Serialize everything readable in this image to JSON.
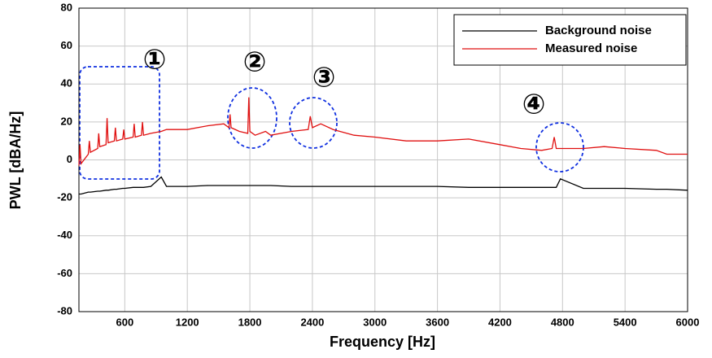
{
  "chart_data": {
    "type": "line",
    "xlabel": "Frequency [Hz]",
    "ylabel": "PWL [dBA/Hz]",
    "x": [
      160,
      170,
      180,
      250,
      260,
      270,
      340,
      350,
      360,
      420,
      430,
      440,
      500,
      510,
      520,
      580,
      590,
      600,
      680,
      690,
      700,
      760,
      770,
      780,
      850,
      950,
      1000,
      1200,
      1400,
      1550,
      1600,
      1610,
      1620,
      1700,
      1780,
      1790,
      1800,
      1850,
      1950,
      2000,
      2200,
      2360,
      2380,
      2400,
      2480,
      2600,
      2800,
      3000,
      3300,
      3600,
      3900,
      4200,
      4400,
      4600,
      4700,
      4720,
      4740,
      4780,
      5000,
      5200,
      5400,
      5700,
      5800,
      6000
    ],
    "series": [
      {
        "name": "Background noise",
        "color": "#000000",
        "values": [
          -18,
          -18,
          -18,
          -17,
          -17,
          -17,
          -16.5,
          -16.5,
          -16.5,
          -16,
          -16,
          -16,
          -15.5,
          -15.5,
          -15.5,
          -15,
          -15,
          -15,
          -14.5,
          -14.5,
          -14.5,
          -14.5,
          -14.5,
          -14.5,
          -14,
          -9,
          -14,
          -14,
          -13.5,
          -13.5,
          -13.5,
          -13.5,
          -13.5,
          -13.5,
          -13.5,
          -13.5,
          -13.5,
          -13.5,
          -13.5,
          -13.5,
          -14,
          -14,
          -14,
          -14,
          -14,
          -14,
          -14,
          -14,
          -14,
          -14,
          -14.5,
          -14.5,
          -14.5,
          -14.5,
          -14.5,
          -14.5,
          -14.5,
          -10,
          -15,
          -15,
          -15,
          -15.5,
          -15.5,
          -16
        ]
      },
      {
        "name": "Measured noise",
        "color": "#e01010",
        "values": [
          -3,
          8,
          -2,
          3,
          10,
          4,
          6,
          14,
          7,
          8,
          22,
          9,
          10,
          17,
          10,
          11,
          16,
          11,
          12,
          19,
          12,
          13,
          20,
          13,
          14,
          15,
          16,
          16,
          18,
          19,
          17,
          24,
          17,
          15,
          14,
          33,
          15,
          13,
          15,
          13,
          15,
          16,
          23,
          17,
          19,
          16,
          13,
          12,
          10,
          10,
          11,
          8,
          6,
          5,
          6,
          12,
          6,
          6,
          6,
          7,
          6,
          5,
          3,
          3
        ]
      }
    ],
    "xlim": [
      160,
      6000
    ],
    "xticks": [
      600,
      1200,
      1800,
      2400,
      3000,
      3600,
      4200,
      4800,
      5400,
      6000
    ],
    "ylim": [
      -80,
      80
    ],
    "yticks": [
      -80,
      -60,
      -40,
      -20,
      0,
      20,
      40,
      60,
      80
    ],
    "grid": true,
    "legend": "upper right",
    "annotations": [
      "①",
      "②",
      "③",
      "④"
    ]
  }
}
